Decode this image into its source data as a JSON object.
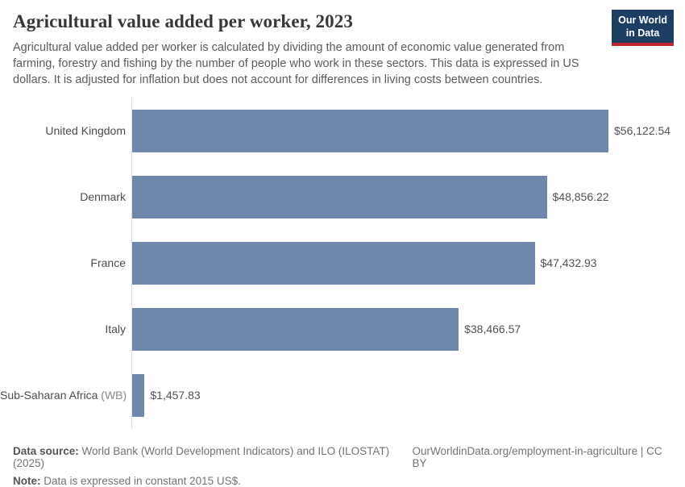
{
  "header": {
    "title": "Agricultural value added per worker, 2023",
    "subtitle": "Agricultural value added per worker is calculated by dividing the amount of economic value generated from farming, forestry and fishing by the number of people who work in these sectors. This data is expressed in US dollars. It is adjusted for inflation but does not account for differences in living costs between countries.",
    "logo": {
      "line1": "Our World",
      "line2": "in Data"
    }
  },
  "chart_data": {
    "type": "bar",
    "orientation": "horizontal",
    "title": "Agricultural value added per worker, 2023",
    "xlabel": "",
    "ylabel": "",
    "unit": "constant 2015 US$",
    "xlim": [
      0,
      56122.54
    ],
    "grid": false,
    "legend": "none",
    "categories": [
      {
        "name": "United Kingdom",
        "suffix": ""
      },
      {
        "name": "Denmark",
        "suffix": ""
      },
      {
        "name": "France",
        "suffix": ""
      },
      {
        "name": "Italy",
        "suffix": ""
      },
      {
        "name": "Sub-Saharan Africa",
        "suffix": " (WB)"
      }
    ],
    "values": [
      56122.54,
      48856.22,
      47432.93,
      38466.57,
      1457.83
    ],
    "value_labels": [
      "$56,122.54",
      "$48,856.22",
      "$47,432.93",
      "$38,466.57",
      "$1,457.83"
    ]
  },
  "footer": {
    "datasource_label": "Data source:",
    "datasource_text": " World Bank (World Development Indicators) and ILO (ILOSTAT) (2025)",
    "link_text": "OurWorldinData.org/employment-in-agriculture | CC BY",
    "note_label": "Note:",
    "note_text": " Data is expressed in constant 2015 US$."
  },
  "colors": {
    "bar": "#6e87ab",
    "axis_line": "#dcdcdc",
    "logo_background": "#1d3d63",
    "logo_underline": "#c0262e",
    "title_text": "#383838"
  }
}
